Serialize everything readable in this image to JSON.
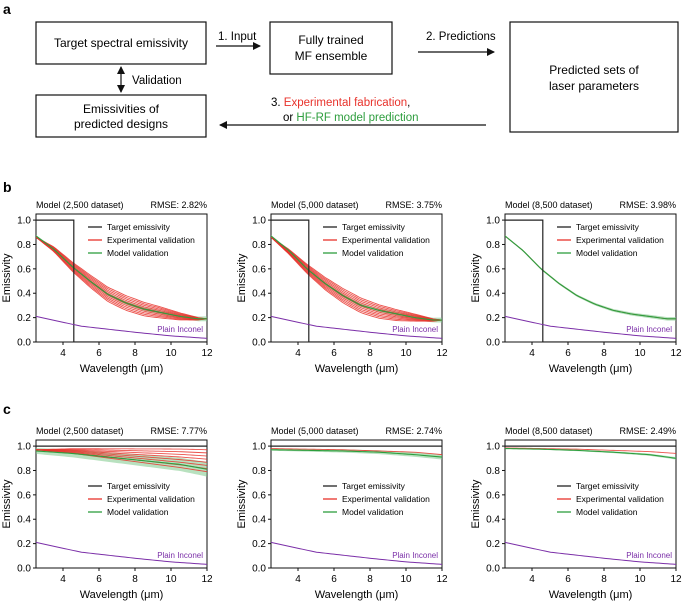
{
  "panel_a": {
    "label": "a",
    "target_box": "Target spectral emissivity",
    "step1": "1. Input",
    "ensemble_line1": "Fully trained",
    "ensemble_line2": "MF ensemble",
    "step2": "2. Predictions",
    "predicted_line1": "Predicted sets of",
    "predicted_line2": "laser parameters",
    "validation": "Validation",
    "emiss_line1": "Emissivities of",
    "emiss_line2": "predicted designs",
    "step3_prefix": "3. ",
    "step3_red": "Experimental fabrication",
    "step3_comma": ",",
    "step3_or": "or ",
    "step3_green": "HF-RF model prediction",
    "colors": {
      "red": "#e8322b",
      "green": "#2e9e3e"
    }
  },
  "panel_b": {
    "label": "b"
  },
  "panel_c": {
    "label": "c"
  },
  "legend": {
    "target": "Target emissivity",
    "experimental": "Experimental validation",
    "model": "Model validation",
    "inconel": "Plain Inconel"
  },
  "colors": {
    "target": "#222222",
    "experimental": "#e8322b",
    "model": "#2e9e3e",
    "band": "#7ec88a",
    "inconel": "#7b2fa8"
  },
  "chart_data": [
    {
      "type": "line",
      "panel": "b",
      "title_left": "Model (2,500 dataset)",
      "title_right": "RMSE: 2.82%",
      "xlabel": "Wavelength (μm)",
      "ylabel": "Emissivity",
      "xlim": [
        2.5,
        12
      ],
      "ylim": [
        0,
        1.05
      ],
      "xticks": [
        "4",
        "6",
        "8",
        "10",
        "12"
      ],
      "yticks": [
        "0.0",
        "0.2",
        "0.4",
        "0.6",
        "0.8",
        "1.0"
      ],
      "target": "step",
      "target_step": {
        "before": 1.0,
        "after": 0.0,
        "at": 4.6
      },
      "inconel": {
        "x": [
          2.5,
          5,
          8,
          10,
          12
        ],
        "y": [
          0.21,
          0.13,
          0.08,
          0.05,
          0.03
        ]
      },
      "experimental_n": 10,
      "experimental_spread": 0.06,
      "experimental_mean": {
        "x": [
          2.5,
          3.5,
          4.5,
          5.5,
          6.5,
          7.5,
          8.5,
          9.5,
          10.5,
          11.5,
          12
        ],
        "y": [
          0.86,
          0.76,
          0.62,
          0.5,
          0.39,
          0.32,
          0.27,
          0.24,
          0.21,
          0.19,
          0.19
        ]
      },
      "model": {
        "x": [
          2.5,
          3.5,
          4.5,
          5.5,
          6.5,
          7.5,
          8.5,
          9.5,
          10.5,
          11.5,
          12
        ],
        "y": [
          0.87,
          0.76,
          0.62,
          0.5,
          0.39,
          0.32,
          0.27,
          0.24,
          0.21,
          0.19,
          0.19
        ]
      },
      "band": 0.02,
      "legend_pos": "top-right"
    },
    {
      "type": "line",
      "panel": "b",
      "title_left": "Model (5,000 dataset)",
      "title_right": "RMSE: 3.75%",
      "xlabel": "Wavelength (μm)",
      "ylabel": "Emissivity",
      "xlim": [
        2.5,
        12
      ],
      "ylim": [
        0,
        1.05
      ],
      "xticks": [
        "4",
        "6",
        "8",
        "10",
        "12"
      ],
      "yticks": [
        "0.0",
        "0.2",
        "0.4",
        "0.6",
        "0.8",
        "1.0"
      ],
      "target": "step",
      "target_step": {
        "before": 1.0,
        "after": 0.0,
        "at": 4.6
      },
      "inconel": {
        "x": [
          2.5,
          5,
          8,
          10,
          12
        ],
        "y": [
          0.21,
          0.13,
          0.08,
          0.05,
          0.03
        ]
      },
      "experimental_n": 10,
      "experimental_spread": 0.06,
      "experimental_mean": {
        "x": [
          2.5,
          3.5,
          4.5,
          5.5,
          6.5,
          7.5,
          8.5,
          9.5,
          10.5,
          11.5,
          12
        ],
        "y": [
          0.86,
          0.74,
          0.6,
          0.48,
          0.38,
          0.3,
          0.25,
          0.22,
          0.2,
          0.18,
          0.18
        ]
      },
      "model": {
        "x": [
          2.5,
          3.5,
          4.5,
          5.5,
          6.5,
          7.5,
          8.5,
          9.5,
          10.5,
          11.5,
          12
        ],
        "y": [
          0.87,
          0.75,
          0.6,
          0.48,
          0.38,
          0.3,
          0.26,
          0.23,
          0.2,
          0.18,
          0.18
        ]
      },
      "band": 0.02,
      "legend_pos": "top-right"
    },
    {
      "type": "line",
      "panel": "b",
      "title_left": "Model (8,500 dataset)",
      "title_right": "RMSE: 3.98%",
      "xlabel": "Wavelength (μm)",
      "ylabel": "Emissivity",
      "xlim": [
        2.5,
        12
      ],
      "ylim": [
        0,
        1.05
      ],
      "xticks": [
        "4",
        "6",
        "8",
        "10",
        "12"
      ],
      "yticks": [
        "0.0",
        "0.2",
        "0.4",
        "0.6",
        "0.8",
        "1.0"
      ],
      "target": "step",
      "target_step": {
        "before": 1.0,
        "after": 0.0,
        "at": 4.6
      },
      "inconel": {
        "x": [
          2.5,
          5,
          8,
          10,
          12
        ],
        "y": [
          0.21,
          0.13,
          0.08,
          0.05,
          0.03
        ]
      },
      "experimental_n": 1,
      "experimental_spread": 0.0,
      "experimental_mean": {
        "x": [
          2.5,
          3.5,
          4.5,
          5.5,
          6.5,
          7.5,
          8.5,
          9.5,
          10.5,
          11.5,
          12
        ],
        "y": [
          0.87,
          0.75,
          0.6,
          0.48,
          0.38,
          0.31,
          0.26,
          0.23,
          0.21,
          0.19,
          0.19
        ]
      },
      "model": {
        "x": [
          2.5,
          3.5,
          4.5,
          5.5,
          6.5,
          7.5,
          8.5,
          9.5,
          10.5,
          11.5,
          12
        ],
        "y": [
          0.87,
          0.75,
          0.6,
          0.48,
          0.38,
          0.31,
          0.26,
          0.23,
          0.21,
          0.19,
          0.19
        ]
      },
      "band": 0.015,
      "legend_pos": "top-right"
    },
    {
      "type": "line",
      "panel": "c",
      "title_left": "Model (2,500 dataset)",
      "title_right": "RMSE: 7.77%",
      "xlabel": "Wavelength (μm)",
      "ylabel": "Emissivity",
      "xlim": [
        2.5,
        12
      ],
      "ylim": [
        0,
        1.05
      ],
      "xticks": [
        "4",
        "6",
        "8",
        "10",
        "12"
      ],
      "yticks": [
        "0.0",
        "0.2",
        "0.4",
        "0.6",
        "0.8",
        "1.0"
      ],
      "target": "flat",
      "target_value": 1.0,
      "inconel": {
        "x": [
          2.5,
          5,
          8,
          10,
          12
        ],
        "y": [
          0.21,
          0.13,
          0.08,
          0.05,
          0.03
        ]
      },
      "experimental_n": 8,
      "experimental_spread": 0.09,
      "experimental_mean": {
        "x": [
          2.5,
          4.5,
          6.5,
          8.5,
          10.5,
          12
        ],
        "y": [
          0.97,
          0.96,
          0.94,
          0.92,
          0.9,
          0.88
        ]
      },
      "model": {
        "x": [
          2.5,
          4.5,
          6.5,
          8.5,
          10.5,
          12
        ],
        "y": [
          0.96,
          0.94,
          0.91,
          0.88,
          0.85,
          0.81
        ]
      },
      "band": 0.06,
      "legend_pos": "center-right"
    },
    {
      "type": "line",
      "panel": "c",
      "title_left": "Model (5,000 dataset)",
      "title_right": "RMSE: 2.74%",
      "xlabel": "Wavelength (μm)",
      "ylabel": "Emissivity",
      "xlim": [
        2.5,
        12
      ],
      "ylim": [
        0,
        1.05
      ],
      "xticks": [
        "4",
        "6",
        "8",
        "10",
        "12"
      ],
      "yticks": [
        "0.0",
        "0.2",
        "0.4",
        "0.6",
        "0.8",
        "1.0"
      ],
      "target": "flat",
      "target_value": 1.0,
      "inconel": {
        "x": [
          2.5,
          5,
          8,
          10,
          12
        ],
        "y": [
          0.21,
          0.13,
          0.08,
          0.05,
          0.03
        ]
      },
      "experimental_n": 1,
      "experimental_spread": 0.0,
      "experimental_mean": {
        "x": [
          2.5,
          4.5,
          6.5,
          8.5,
          10.5,
          12
        ],
        "y": [
          0.98,
          0.975,
          0.97,
          0.96,
          0.95,
          0.93
        ]
      },
      "model": {
        "x": [
          2.5,
          4.5,
          6.5,
          8.5,
          10.5,
          12
        ],
        "y": [
          0.97,
          0.965,
          0.96,
          0.95,
          0.93,
          0.91
        ]
      },
      "band": 0.02,
      "legend_pos": "center-right"
    },
    {
      "type": "line",
      "panel": "c",
      "title_left": "Model (8,500 dataset)",
      "title_right": "RMSE: 2.49%",
      "xlabel": "Wavelength (μm)",
      "ylabel": "Emissivity",
      "xlim": [
        2.5,
        12
      ],
      "ylim": [
        0,
        1.05
      ],
      "xticks": [
        "4",
        "6",
        "8",
        "10",
        "12"
      ],
      "yticks": [
        "0.0",
        "0.2",
        "0.4",
        "0.6",
        "0.8",
        "1.0"
      ],
      "target": "flat",
      "target_value": 1.0,
      "inconel": {
        "x": [
          2.5,
          5,
          8,
          10,
          12
        ],
        "y": [
          0.21,
          0.13,
          0.08,
          0.05,
          0.03
        ]
      },
      "experimental_n": 1,
      "experimental_spread": 0.0,
      "experimental_mean": {
        "x": [
          2.5,
          4.5,
          6.5,
          8.5,
          10.5,
          12
        ],
        "y": [
          0.985,
          0.98,
          0.975,
          0.965,
          0.955,
          0.94
        ]
      },
      "model": {
        "x": [
          2.5,
          4.5,
          6.5,
          8.5,
          10.5,
          12
        ],
        "y": [
          0.98,
          0.975,
          0.965,
          0.95,
          0.93,
          0.9
        ]
      },
      "band": 0.01,
      "legend_pos": "center-right"
    }
  ]
}
